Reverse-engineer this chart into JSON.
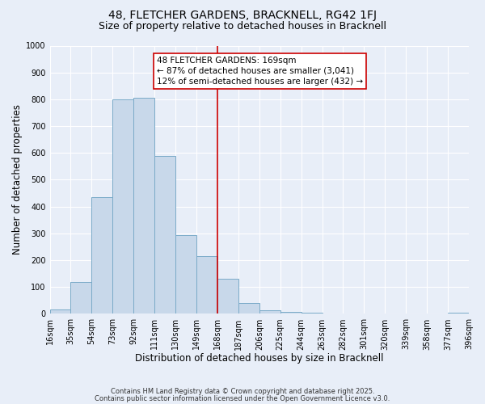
{
  "title": "48, FLETCHER GARDENS, BRACKNELL, RG42 1FJ",
  "subtitle": "Size of property relative to detached houses in Bracknell",
  "xlabel": "Distribution of detached houses by size in Bracknell",
  "ylabel": "Number of detached properties",
  "bin_labels": [
    "16sqm",
    "35sqm",
    "54sqm",
    "73sqm",
    "92sqm",
    "111sqm",
    "130sqm",
    "149sqm",
    "168sqm",
    "187sqm",
    "206sqm",
    "225sqm",
    "244sqm",
    "263sqm",
    "282sqm",
    "301sqm",
    "320sqm",
    "339sqm",
    "358sqm",
    "377sqm",
    "396sqm"
  ],
  "bar_heights": [
    15,
    120,
    435,
    800,
    805,
    590,
    295,
    215,
    130,
    40,
    12,
    8,
    5,
    2,
    0,
    0,
    0,
    0,
    0,
    5
  ],
  "bin_edges": [
    16,
    35,
    54,
    73,
    92,
    111,
    130,
    149,
    168,
    187,
    206,
    225,
    244,
    263,
    282,
    301,
    320,
    339,
    358,
    377,
    396
  ],
  "bar_color": "#c8d8ea",
  "bar_edge_color": "#7aaac8",
  "vline_x": 168,
  "vline_color": "#cc0000",
  "annotation_text": "48 FLETCHER GARDENS: 169sqm\n← 87% of detached houses are smaller (3,041)\n12% of semi-detached houses are larger (432) →",
  "annotation_box_color": "#ffffff",
  "annotation_box_edge": "#cc0000",
  "ylim": [
    0,
    1000
  ],
  "yticks": [
    0,
    100,
    200,
    300,
    400,
    500,
    600,
    700,
    800,
    900,
    1000
  ],
  "bg_color": "#e8eef8",
  "grid_color": "#ffffff",
  "footer1": "Contains HM Land Registry data © Crown copyright and database right 2025.",
  "footer2": "Contains public sector information licensed under the Open Government Licence v3.0.",
  "title_fontsize": 10,
  "subtitle_fontsize": 9,
  "axis_label_fontsize": 8.5,
  "tick_fontsize": 7,
  "annotation_fontsize": 7.5
}
